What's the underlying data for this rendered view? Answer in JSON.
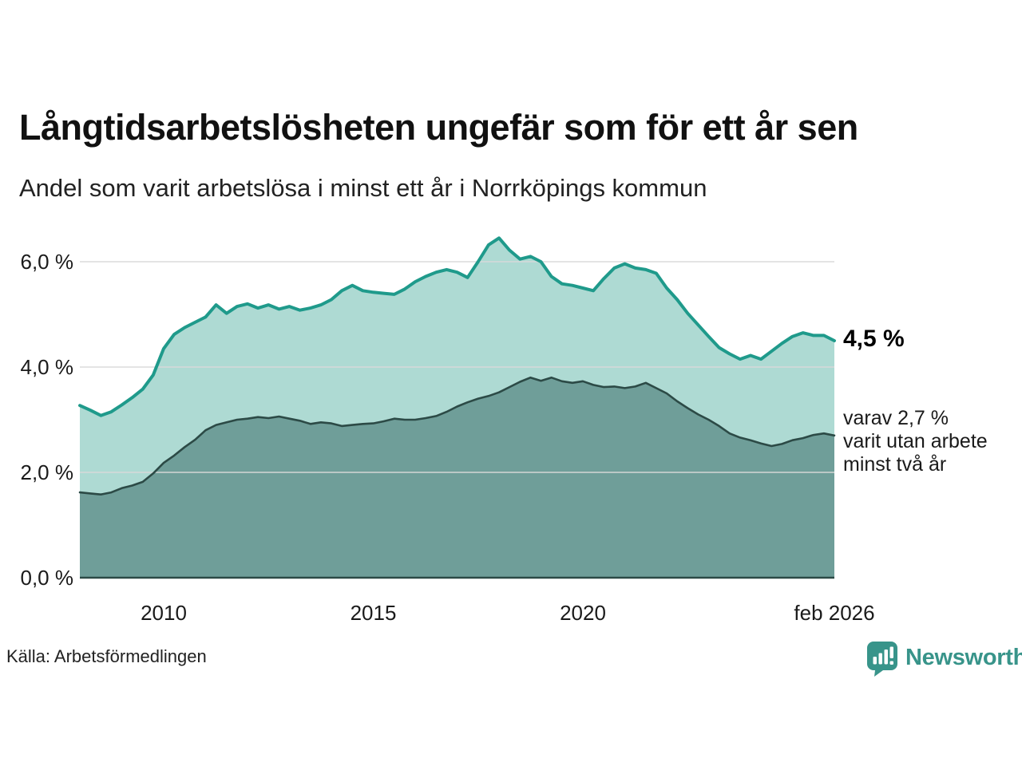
{
  "header": {
    "title": "Långtidsarbetslösheten ungefär som för ett år sen",
    "subtitle": "Andel som varit arbetslösa i minst ett år i Norrköpings kommun"
  },
  "chart_data": {
    "type": "area",
    "title": "Långtidsarbetslösheten ungefär som för ett år sen",
    "subtitle": "Andel som varit arbetslösa i minst ett år i Norrköpings kommun",
    "unit": "%",
    "x_start": 2008,
    "x_step": 0.25,
    "xlabel": "",
    "ylabel": "",
    "ylim": [
      0,
      6.6
    ],
    "grid": true,
    "legend_position": "none",
    "series": [
      {
        "name": "Andel som varit arbetslösa minst ett år",
        "line_color": "#1f9a8b",
        "fill_color": "#aedad3",
        "latest_value": "4,5 %",
        "values": [
          3.27,
          3.18,
          3.08,
          3.15,
          3.28,
          3.42,
          3.58,
          3.85,
          4.35,
          4.62,
          4.75,
          4.85,
          4.95,
          5.18,
          5.02,
          5.15,
          5.2,
          5.12,
          5.18,
          5.1,
          5.15,
          5.08,
          5.12,
          5.18,
          5.28,
          5.45,
          5.55,
          5.45,
          5.42,
          5.4,
          5.38,
          5.48,
          5.62,
          5.72,
          5.8,
          5.85,
          5.8,
          5.7,
          6.0,
          6.32,
          6.45,
          6.22,
          6.05,
          6.1,
          6.0,
          5.72,
          5.58,
          5.55,
          5.5,
          5.45,
          5.68,
          5.88,
          5.96,
          5.88,
          5.85,
          5.78,
          5.5,
          5.28,
          5.02,
          4.8,
          4.58,
          4.37,
          4.25,
          4.15,
          4.22,
          4.15,
          4.3,
          4.45,
          4.58,
          4.65,
          4.6,
          4.6,
          4.5
        ]
      },
      {
        "name": "varav utan arbete minst två år",
        "line_color": "#2c4a46",
        "fill_color": "#6f9e99",
        "latest_value": "2,7 %",
        "values": [
          1.62,
          1.6,
          1.58,
          1.62,
          1.7,
          1.75,
          1.82,
          1.98,
          2.18,
          2.32,
          2.48,
          2.62,
          2.8,
          2.9,
          2.95,
          3.0,
          3.02,
          3.05,
          3.03,
          3.06,
          3.02,
          2.98,
          2.92,
          2.95,
          2.93,
          2.88,
          2.9,
          2.92,
          2.93,
          2.97,
          3.02,
          3.0,
          3.0,
          3.03,
          3.07,
          3.15,
          3.25,
          3.33,
          3.4,
          3.45,
          3.52,
          3.62,
          3.72,
          3.8,
          3.74,
          3.8,
          3.73,
          3.7,
          3.73,
          3.66,
          3.62,
          3.63,
          3.6,
          3.63,
          3.7,
          3.6,
          3.5,
          3.35,
          3.22,
          3.1,
          3.0,
          2.88,
          2.74,
          2.66,
          2.61,
          2.55,
          2.5,
          2.54,
          2.61,
          2.65,
          2.71,
          2.74,
          2.7
        ]
      }
    ],
    "yticks": [
      {
        "value": 6,
        "label": "6,0 %"
      },
      {
        "value": 4,
        "label": "4,0 %"
      },
      {
        "value": 2,
        "label": "2,0 %"
      },
      {
        "value": 0,
        "label": "0,0 %"
      }
    ],
    "xticks": [
      {
        "x": 2010,
        "label": "2010"
      },
      {
        "x": 2015,
        "label": "2015"
      },
      {
        "x": 2020,
        "label": "2020"
      },
      {
        "x": 2026,
        "label": "feb 2026"
      }
    ],
    "annotations": {
      "upper_label": "4,5 %",
      "lower_line1": "varav 2,7 %",
      "lower_line2": "varit utan arbete",
      "lower_line3": "minst två år"
    },
    "colors": {
      "grid": "#d9d9d9",
      "baseline": "#2c4a46"
    }
  },
  "footer": {
    "source": "Källa: Arbetsförmedlingen",
    "brand": "Newsworthy",
    "brand_color": "#38948a",
    "brand_icon": "newsworthy-bars-speech-bubble-icon"
  }
}
